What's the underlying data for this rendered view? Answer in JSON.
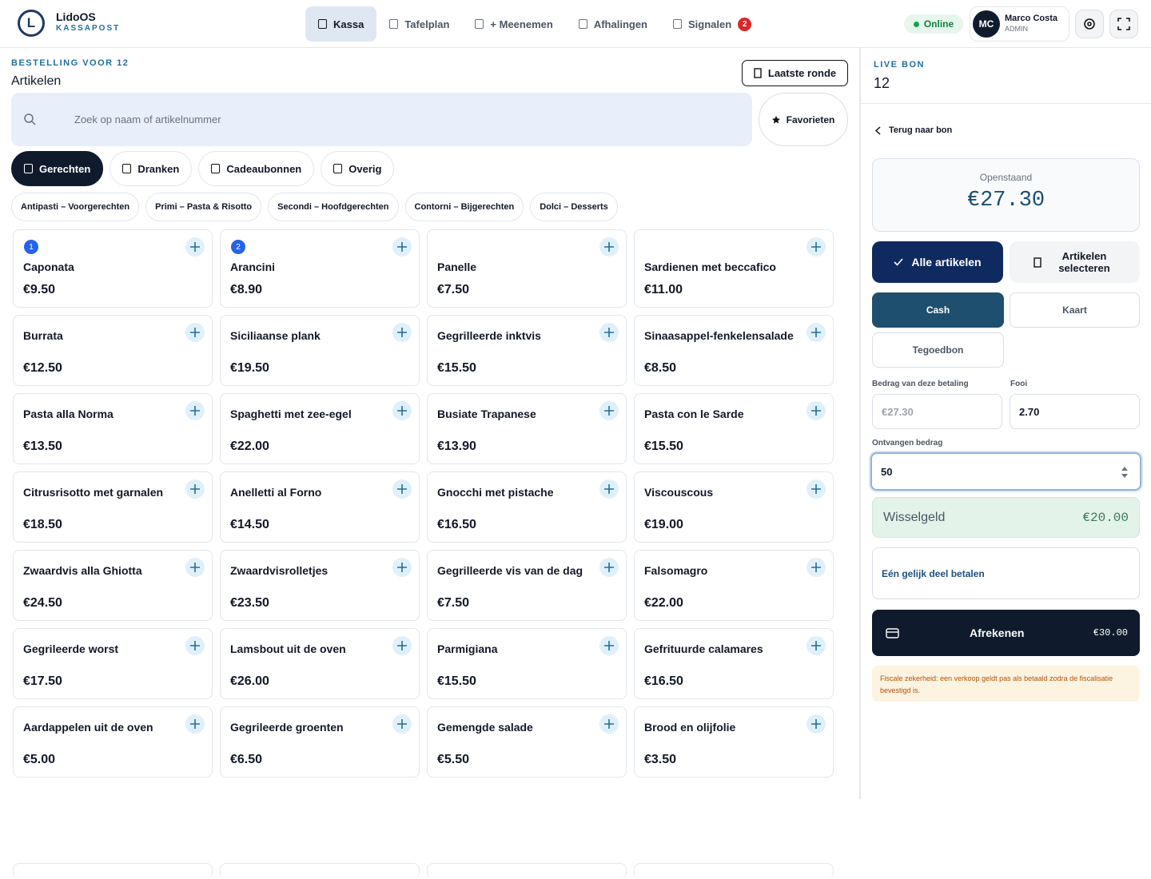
{
  "header": {
    "logo": "L",
    "brand": "LidoOS",
    "subtitle": "KASSAPOST",
    "nav": [
      {
        "label": "Kassa"
      },
      {
        "label": "Tafelplan"
      },
      {
        "label": "+ Meenemen"
      },
      {
        "label": "Afhalingen"
      },
      {
        "label": "Signalen",
        "badge": "2"
      }
    ],
    "status": "Online",
    "user": {
      "initials": "MC",
      "name": "Marco Costa",
      "role": "ADMIN"
    }
  },
  "order": {
    "eyebrow": "BESTELLING VOOR 12",
    "title": "Artikelen",
    "last_round": "Laatste ronde",
    "search_placeholder": "Zoek op naam of artikelnummer",
    "favorites": "Favorieten",
    "tabs": [
      "Gerechten",
      "Dranken",
      "Cadeaubonnen",
      "Overig"
    ],
    "subcategories": [
      "Antipasti – Voorgerechten",
      "Primi – Pasta & Risotto",
      "Secondi – Hoofdgerechten",
      "Contorni – Bijgerechten",
      "Dolci – Desserts"
    ],
    "items": [
      {
        "count": "1",
        "name": "Caponata",
        "price": "€9.50"
      },
      {
        "count": "2",
        "name": "Arancini",
        "price": "€8.90"
      },
      {
        "name": "Panelle",
        "price": "€7.50"
      },
      {
        "name": "Sardienen met beccafico",
        "price": "€11.00"
      },
      {
        "name": "Burrata",
        "price": "€12.50"
      },
      {
        "name": "Siciliaanse plank",
        "price": "€19.50"
      },
      {
        "name": "Gegrilleerde inktvis",
        "price": "€15.50"
      },
      {
        "name": "Sinaasappel-fenkelensalade",
        "price": "€8.50"
      },
      {
        "name": "Pasta alla Norma",
        "price": "€13.50"
      },
      {
        "name": "Spaghetti met zee-egel",
        "price": "€22.00"
      },
      {
        "name": "Busiate Trapanese",
        "price": "€13.90"
      },
      {
        "name": "Pasta con le Sarde",
        "price": "€15.50"
      },
      {
        "name": "Citrusrisotto met garnalen",
        "price": "€18.50"
      },
      {
        "name": "Anelletti al Forno",
        "price": "€14.50"
      },
      {
        "name": "Gnocchi met pistache",
        "price": "€16.50"
      },
      {
        "name": "Viscouscous",
        "price": "€19.00"
      },
      {
        "name": "Zwaardvis alla Ghiotta",
        "price": "€24.50"
      },
      {
        "name": "Zwaardvisrolletjes",
        "price": "€23.50"
      },
      {
        "name": "Gegrilleerde vis van de dag",
        "price": "€7.50"
      },
      {
        "name": "Falsomagro",
        "price": "€22.00"
      },
      {
        "name": "Gegrileerde worst",
        "price": "€17.50"
      },
      {
        "name": "Lamsbout uit de oven",
        "price": "€26.00"
      },
      {
        "name": "Parmigiana",
        "price": "€15.50"
      },
      {
        "name": "Gefrituurde calamares",
        "price": "€16.50"
      },
      {
        "name": "Aardappelen uit de oven",
        "price": "€5.00"
      },
      {
        "name": "Gegrileerde groenten",
        "price": "€6.50"
      },
      {
        "name": "Gemengde salade",
        "price": "€5.50"
      },
      {
        "name": "Brood en olijfolie",
        "price": "€3.50"
      }
    ]
  },
  "panel": {
    "eyebrow": "LIVE BON",
    "table": "12",
    "back": "Terug naar bon",
    "outstanding_label": "Openstaand",
    "outstanding": "€27.30",
    "all_items": "Alle artikelen",
    "select_items": "Artikelen selecteren",
    "methods": [
      "Cash",
      "Kaart",
      "Tegoedbon"
    ],
    "amount_label": "Bedrag van deze betaling",
    "amount_placeholder": "€27.30",
    "tip_label": "Fooi",
    "tip": "2.70",
    "received_label": "Ontvangen bedrag",
    "received": "50",
    "change_label": "Wisselgeld",
    "change": "€20.00",
    "split": "Eén gelijk deel betalen",
    "checkout": "Afrekenen",
    "checkout_total": "€30.00",
    "note": "Fiscale zekerheid: een verkoop geldt pas als betaald zodra de fiscalisatie bevestigd is."
  }
}
